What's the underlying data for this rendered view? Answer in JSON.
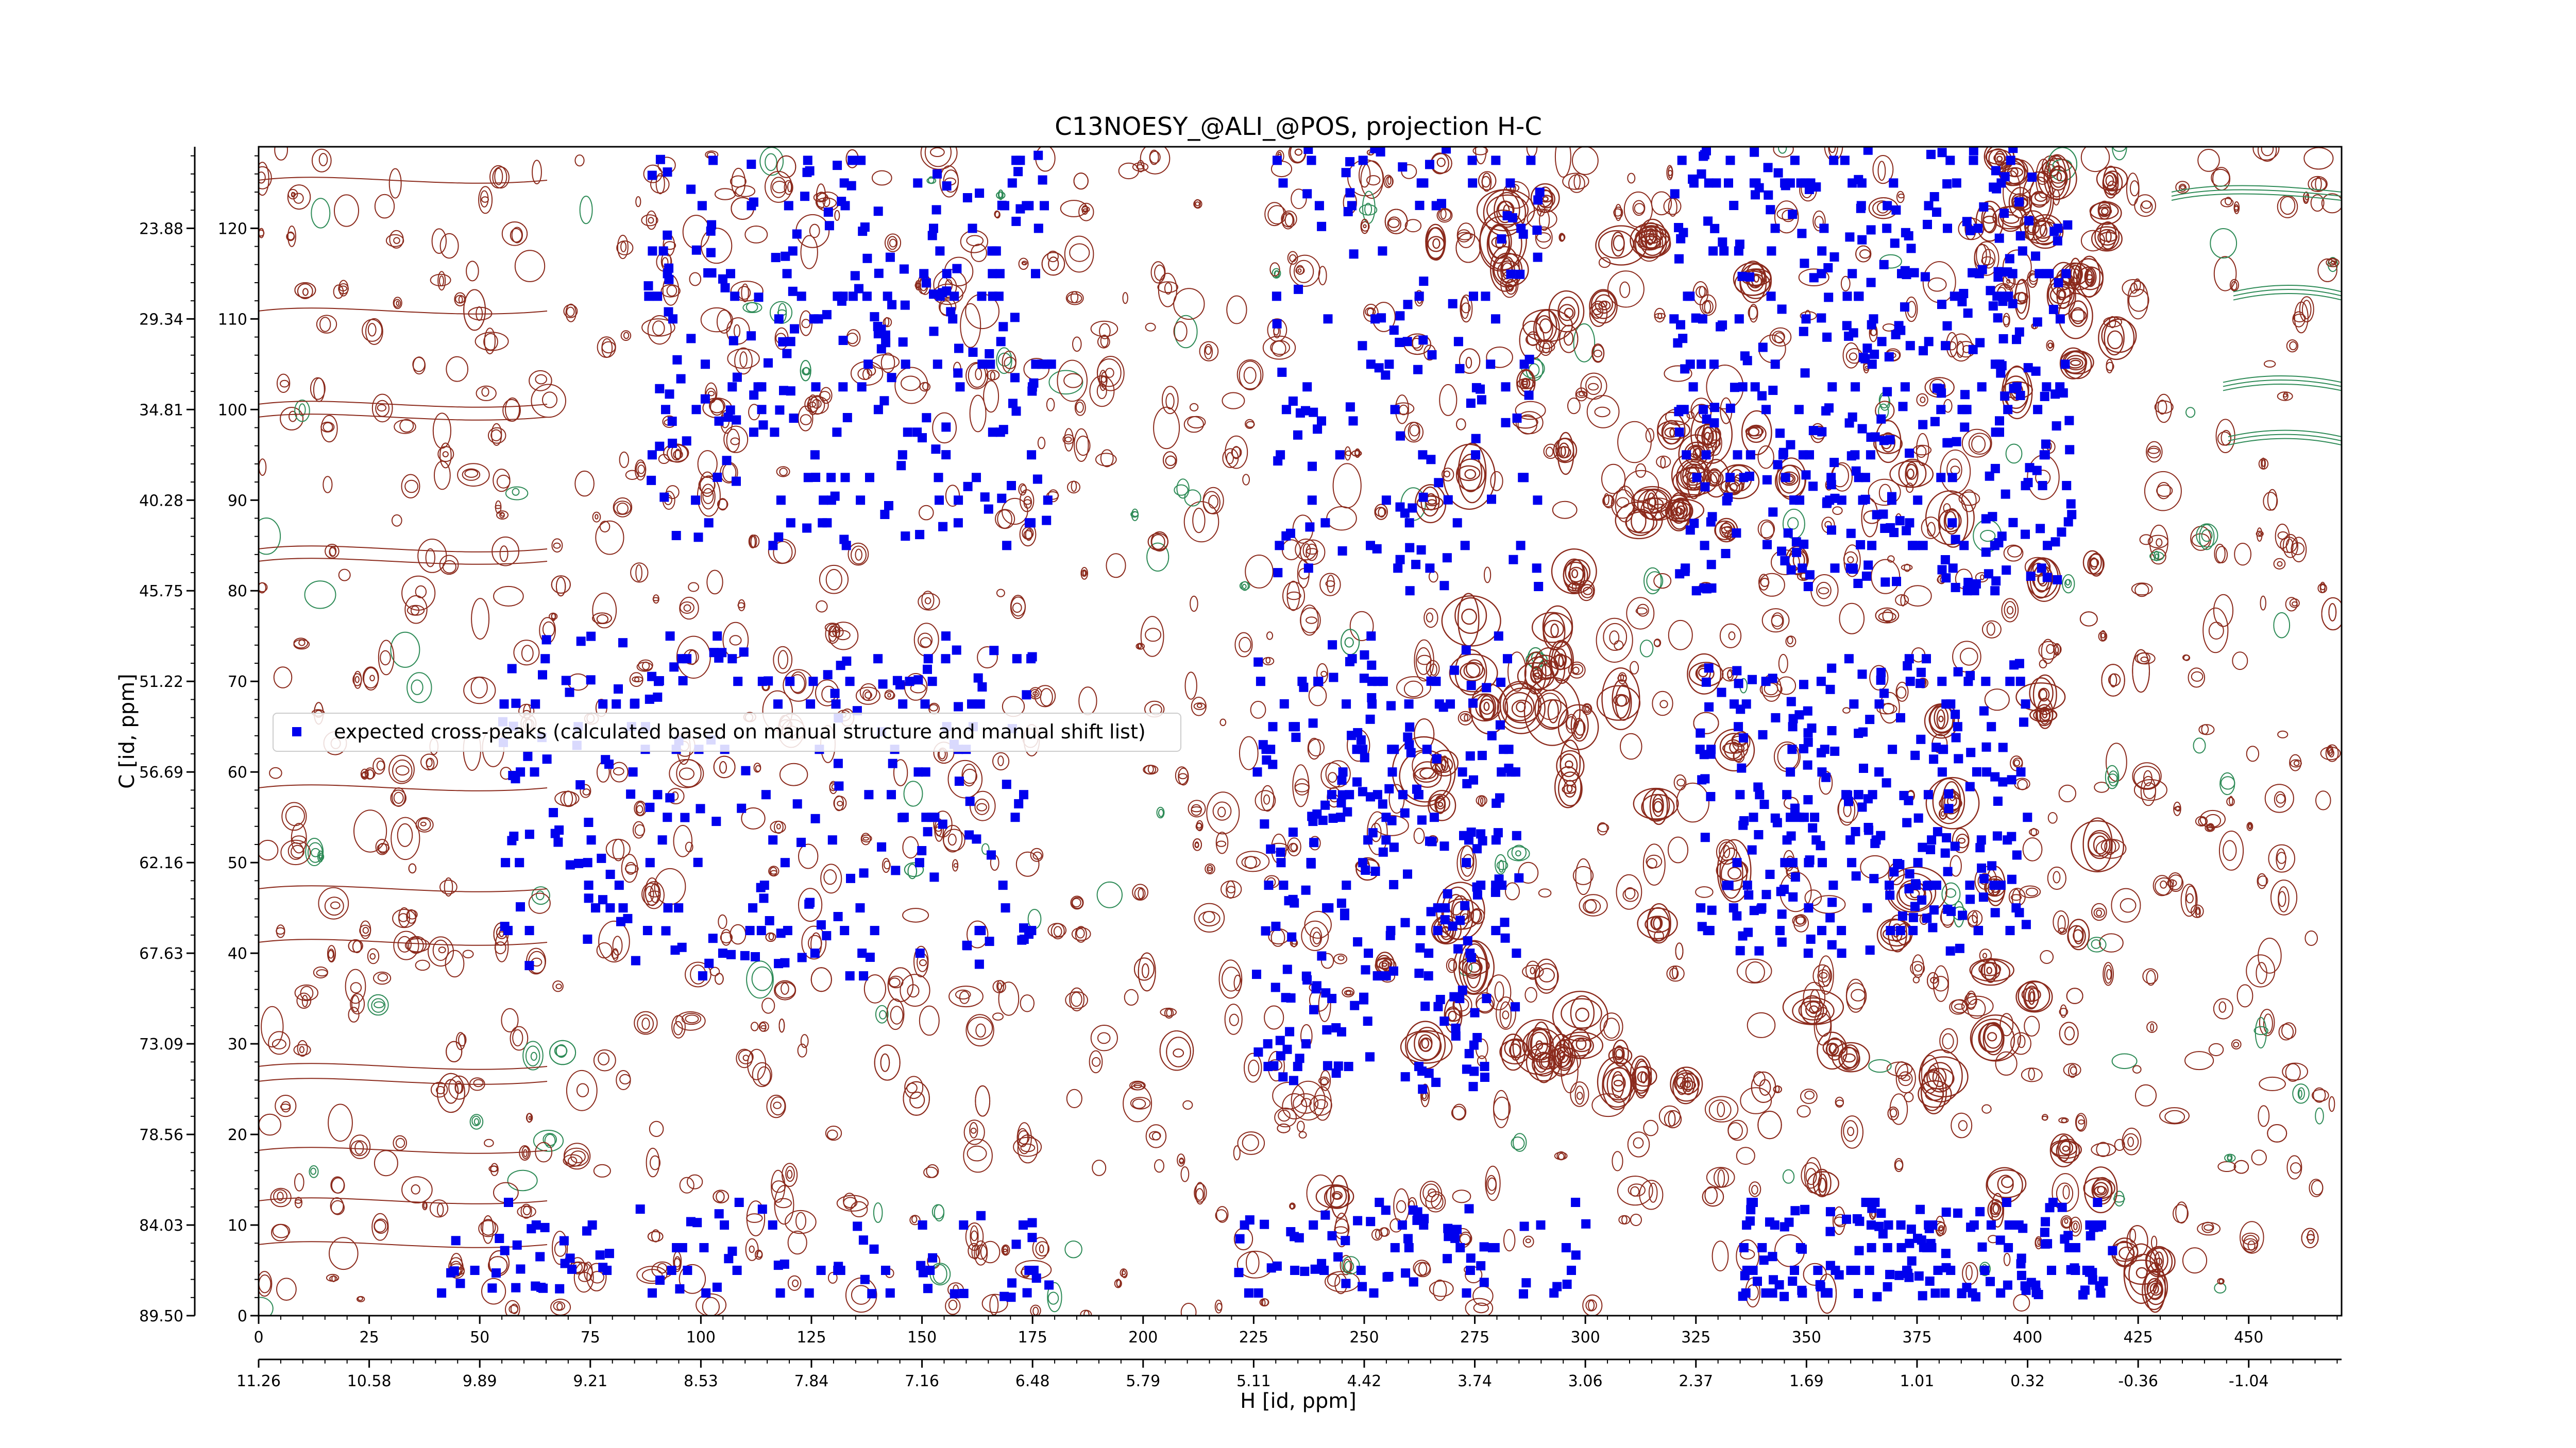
{
  "chart_data": {
    "type": "scatter",
    "title": "C13NOESY_@ALI_@POS, projection H-C",
    "xlabel": "H [id, ppm]",
    "ylabel": "C [id, ppm]",
    "xlim": [
      0,
      471
    ],
    "ylim": [
      0,
      129
    ],
    "x_ticks": [
      0,
      25,
      50,
      75,
      100,
      125,
      150,
      175,
      200,
      225,
      250,
      275,
      300,
      325,
      350,
      375,
      400,
      425,
      450
    ],
    "y_ticks": [
      0,
      10,
      20,
      30,
      40,
      50,
      60,
      70,
      80,
      90,
      100,
      110,
      120
    ],
    "x_ppm_ticks": [
      "11.26",
      "10.58",
      "9.89",
      "9.21",
      "8.53",
      "7.84",
      "7.16",
      "6.48",
      "5.79",
      "5.11",
      "4.42",
      "3.74",
      "3.06",
      "2.37",
      "1.69",
      "1.01",
      "0.32",
      "-0.36",
      "-1.04"
    ],
    "y_ppm_ticks": [
      "89.50",
      "84.03",
      "78.56",
      "73.09",
      "67.63",
      "62.16",
      "56.69",
      "51.22",
      "45.75",
      "40.28",
      "34.81",
      "29.34",
      "23.88"
    ],
    "legend": {
      "label": "expected cross-peaks (calculated based on manual structure and manual shift list)",
      "placement": "center-left"
    },
    "marker_color": "#0000ee",
    "contour_colors": {
      "positive": "#8b2a1c",
      "negative": "#2e8b57"
    },
    "grid": false,
    "series": [
      {
        "name": "expected cross-peaks (calculated based on manual structure and manual shift list)",
        "clusters": [
          {
            "x_range": [
              88,
              180
            ],
            "y_range": [
              85,
              129
            ],
            "count": 260
          },
          {
            "x_range": [
              230,
              290
            ],
            "y_range": [
              80,
              129
            ],
            "count": 140
          },
          {
            "x_range": [
              320,
              410
            ],
            "y_range": [
              80,
              129
            ],
            "count": 420
          },
          {
            "x_range": [
              55,
              175
            ],
            "y_range": [
              38,
              75
            ],
            "count": 240
          },
          {
            "x_range": [
              225,
              285
            ],
            "y_range": [
              25,
              75
            ],
            "count": 260
          },
          {
            "x_range": [
              325,
              400
            ],
            "y_range": [
              40,
              72
            ],
            "count": 260
          },
          {
            "x_range": [
              40,
              180
            ],
            "y_range": [
              2,
              12
            ],
            "count": 90
          },
          {
            "x_range": [
              220,
              305
            ],
            "y_range": [
              2,
              12
            ],
            "count": 70
          },
          {
            "x_range": [
              335,
              420
            ],
            "y_range": [
              2,
              12
            ],
            "count": 160
          }
        ]
      }
    ]
  }
}
